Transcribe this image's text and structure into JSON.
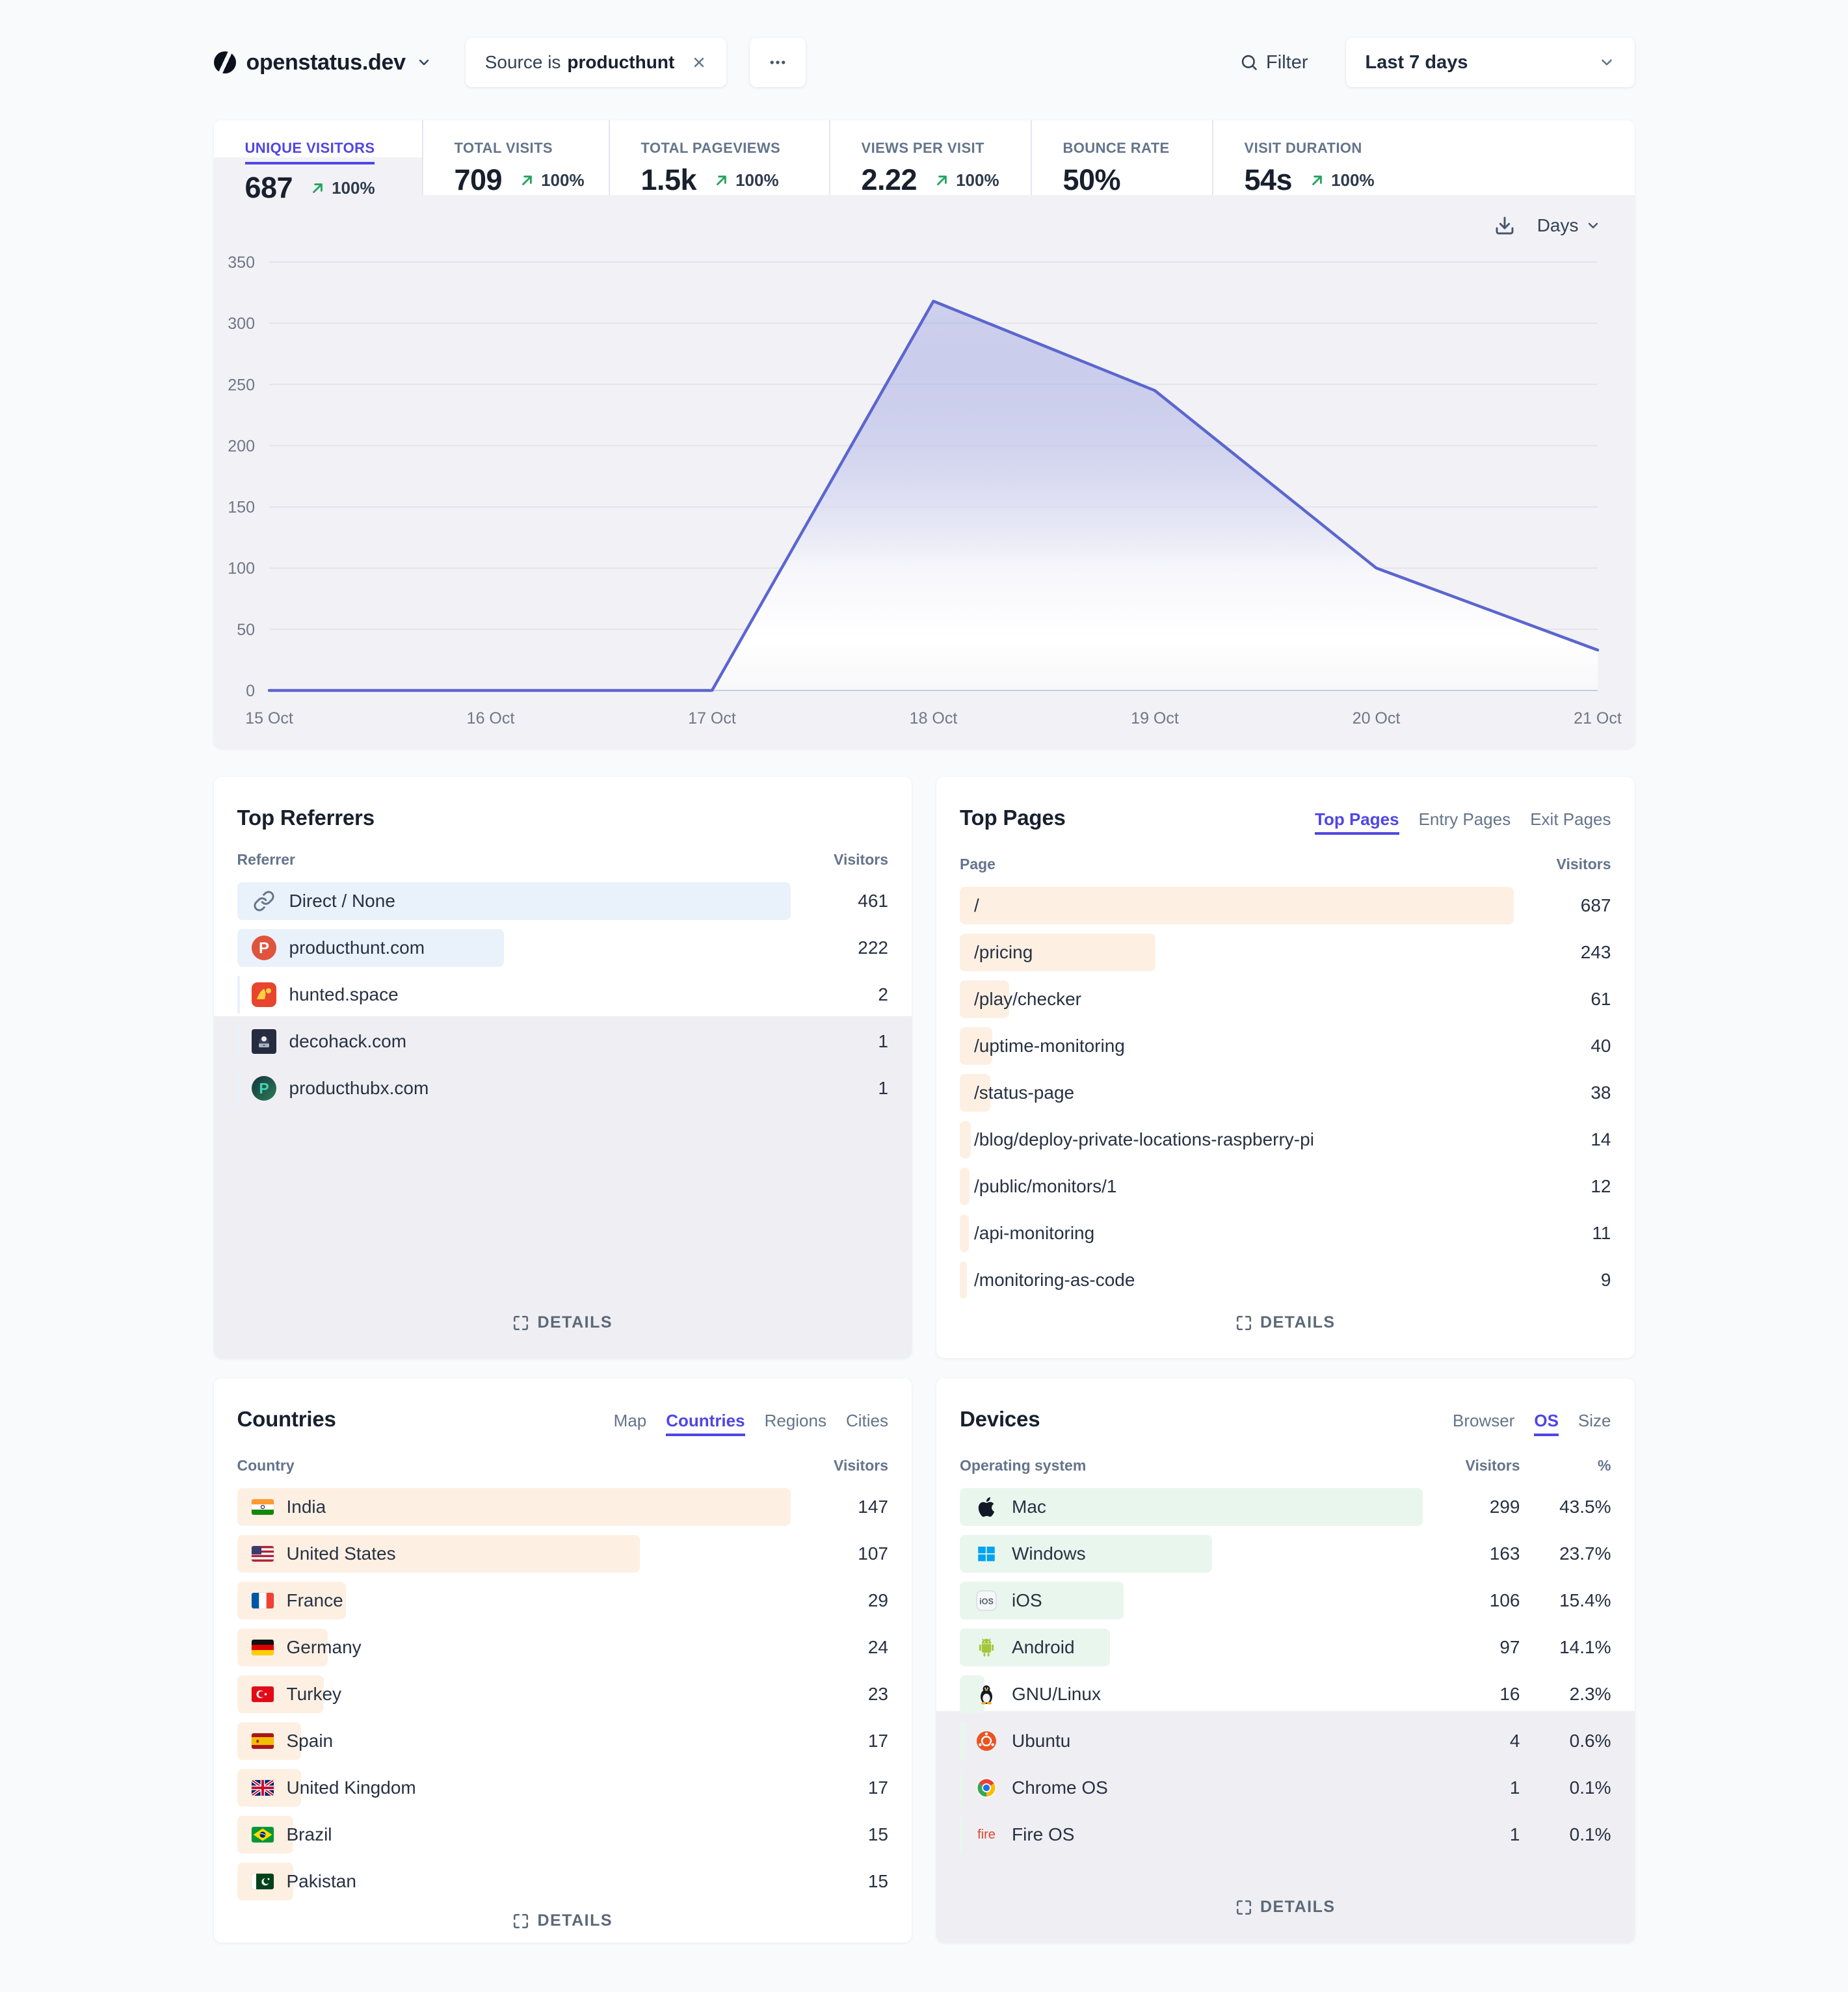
{
  "header": {
    "site": "openstatus.dev",
    "filter_chip": {
      "prefix": "Source is",
      "value": "producthunt"
    },
    "filter_label": "Filter",
    "date_range": "Last 7 days"
  },
  "metrics": {
    "interval_label": "Days",
    "items": [
      {
        "label": "UNIQUE VISITORS",
        "value": "687",
        "change": "100%",
        "arrow": true,
        "selected": true
      },
      {
        "label": "TOTAL VISITS",
        "value": "709",
        "change": "100%",
        "arrow": true,
        "selected": false
      },
      {
        "label": "TOTAL PAGEVIEWS",
        "value": "1.5k",
        "change": "100%",
        "arrow": true,
        "selected": false
      },
      {
        "label": "VIEWS PER VISIT",
        "value": "2.22",
        "change": "100%",
        "arrow": true,
        "selected": false
      },
      {
        "label": "BOUNCE RATE",
        "value": "50%",
        "change": null,
        "arrow": false,
        "selected": false
      },
      {
        "label": "VISIT DURATION",
        "value": "54s",
        "change": "100%",
        "arrow": true,
        "selected": false
      }
    ]
  },
  "chart_data": {
    "type": "area",
    "title": "Unique visitors over time",
    "x": [
      "15 Oct",
      "16 Oct",
      "17 Oct",
      "18 Oct",
      "19 Oct",
      "20 Oct",
      "21 Oct"
    ],
    "values": [
      0,
      0,
      0,
      318,
      245,
      100,
      33
    ],
    "xlabel": "",
    "ylabel": "",
    "ylim": [
      0,
      350
    ],
    "yticks": [
      0,
      50,
      100,
      150,
      200,
      250,
      300,
      350
    ],
    "grid": true,
    "legend": "none",
    "line_color": "#5b66cf"
  },
  "top_referrers": {
    "title": "Top Referrers",
    "columns": [
      "Referrer",
      "Visitors"
    ],
    "details_label": "DETAILS",
    "max": 461,
    "rows": [
      {
        "label": "Direct / None",
        "value": 461,
        "icon": "link"
      },
      {
        "label": "producthunt.com",
        "value": 222,
        "icon": "producthunt"
      },
      {
        "label": "hunted.space",
        "value": 2,
        "icon": "huntedspace"
      },
      {
        "label": "decohack.com",
        "value": 1,
        "icon": "decohack"
      },
      {
        "label": "producthubx.com",
        "value": 1,
        "icon": "producthubx"
      }
    ]
  },
  "top_pages": {
    "title": "Top Pages",
    "tabs": [
      {
        "label": "Top Pages",
        "active": true
      },
      {
        "label": "Entry Pages",
        "active": false
      },
      {
        "label": "Exit Pages",
        "active": false
      }
    ],
    "columns": [
      "Page",
      "Visitors"
    ],
    "details_label": "DETAILS",
    "max": 687,
    "rows": [
      {
        "label": "/",
        "value": 687
      },
      {
        "label": "/pricing",
        "value": 243
      },
      {
        "label": "/play/checker",
        "value": 61
      },
      {
        "label": "/uptime-monitoring",
        "value": 40
      },
      {
        "label": "/status-page",
        "value": 38
      },
      {
        "label": "/blog/deploy-private-locations-raspberry-pi",
        "value": 14
      },
      {
        "label": "/public/monitors/1",
        "value": 12
      },
      {
        "label": "/api-monitoring",
        "value": 11
      },
      {
        "label": "/monitoring-as-code",
        "value": 9
      }
    ]
  },
  "countries": {
    "title": "Countries",
    "tabs": [
      {
        "label": "Map",
        "active": false
      },
      {
        "label": "Countries",
        "active": true
      },
      {
        "label": "Regions",
        "active": false
      },
      {
        "label": "Cities",
        "active": false
      }
    ],
    "columns": [
      "Country",
      "Visitors"
    ],
    "details_label": "DETAILS",
    "max": 147,
    "rows": [
      {
        "label": "India",
        "value": 147,
        "flag": "in"
      },
      {
        "label": "United States",
        "value": 107,
        "flag": "us"
      },
      {
        "label": "France",
        "value": 29,
        "flag": "fr"
      },
      {
        "label": "Germany",
        "value": 24,
        "flag": "de"
      },
      {
        "label": "Turkey",
        "value": 23,
        "flag": "tr"
      },
      {
        "label": "Spain",
        "value": 17,
        "flag": "es"
      },
      {
        "label": "United Kingdom",
        "value": 17,
        "flag": "gb"
      },
      {
        "label": "Brazil",
        "value": 15,
        "flag": "br"
      },
      {
        "label": "Pakistan",
        "value": 15,
        "flag": "pk"
      }
    ]
  },
  "devices": {
    "title": "Devices",
    "tabs": [
      {
        "label": "Browser",
        "active": false
      },
      {
        "label": "OS",
        "active": true
      },
      {
        "label": "Size",
        "active": false
      }
    ],
    "columns": [
      "Operating system",
      "Visitors",
      "%"
    ],
    "details_label": "DETAILS",
    "max": 299,
    "rows": [
      {
        "label": "Mac",
        "value": 299,
        "pct": "43.5%",
        "icon": "apple"
      },
      {
        "label": "Windows",
        "value": 163,
        "pct": "23.7%",
        "icon": "windows"
      },
      {
        "label": "iOS",
        "value": 106,
        "pct": "15.4%",
        "icon": "ios"
      },
      {
        "label": "Android",
        "value": 97,
        "pct": "14.1%",
        "icon": "android"
      },
      {
        "label": "GNU/Linux",
        "value": 16,
        "pct": "2.3%",
        "icon": "linux"
      },
      {
        "label": "Ubuntu",
        "value": 4,
        "pct": "0.6%",
        "icon": "ubuntu"
      },
      {
        "label": "Chrome OS",
        "value": 1,
        "pct": "0.1%",
        "icon": "chromeos"
      },
      {
        "label": "Fire OS",
        "value": 1,
        "pct": "0.1%",
        "icon": "fireos"
      }
    ]
  },
  "colors": {
    "accent": "#4f46e5",
    "positive": "#23a45c",
    "line": "#5b66cf",
    "referrer_bar": "#e9f1fb",
    "page_bar": "#fdf0e3",
    "device_bar": "#e9f6ee",
    "page_bg": "#f8fafc",
    "muted_zone": "#efeff3"
  }
}
